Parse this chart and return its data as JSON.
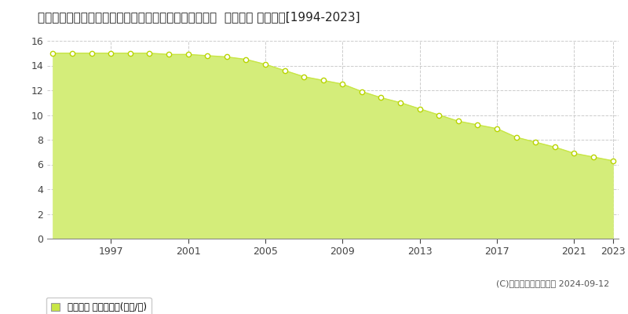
{
  "title": "和歌山県日高郡由良町大字阿戸字木場坪１００１番１８  地価公示 地価推移[1994-2023]",
  "years": [
    1994,
    1995,
    1996,
    1997,
    1998,
    1999,
    2000,
    2001,
    2002,
    2003,
    2004,
    2005,
    2006,
    2007,
    2008,
    2009,
    2010,
    2011,
    2012,
    2013,
    2014,
    2015,
    2016,
    2017,
    2018,
    2019,
    2020,
    2021,
    2022,
    2023
  ],
  "values": [
    15.0,
    15.0,
    15.0,
    15.0,
    15.0,
    15.0,
    14.9,
    14.9,
    14.8,
    14.7,
    14.5,
    14.1,
    13.6,
    13.1,
    12.8,
    12.5,
    11.9,
    11.4,
    11.0,
    10.5,
    10.0,
    9.5,
    9.2,
    8.9,
    8.2,
    7.8,
    7.4,
    6.9,
    6.6,
    6.3
  ],
  "fill_color": "#d4ed7a",
  "line_color": "#c8e645",
  "marker_color": "#ffffff",
  "marker_edge_color": "#b8d400",
  "background_color": "#ffffff",
  "plot_bg_color": "#ffffff",
  "grid_color": "#cccccc",
  "ylim": [
    0,
    16
  ],
  "yticks": [
    0,
    2,
    4,
    6,
    8,
    10,
    12,
    14,
    16
  ],
  "xticks": [
    1997,
    2001,
    2005,
    2009,
    2013,
    2017,
    2021,
    2023
  ],
  "title_fontsize": 11,
  "legend_label": "地価公示 平均坪単価(万円/坪)",
  "copyright_text": "(C)土地価格ドットコム 2024-09-12"
}
